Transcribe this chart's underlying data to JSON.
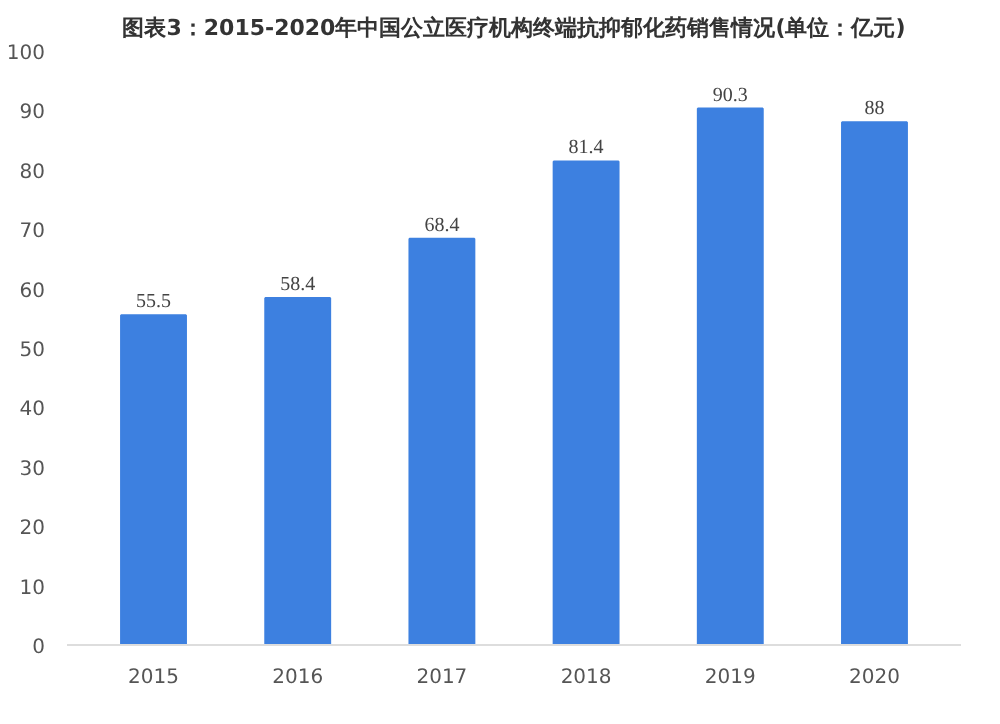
{
  "chart_data": {
    "type": "bar",
    "title": "图表3：2015-2020年中国公立医疗机构终端抗抑郁化药销售情况(单位：亿元)",
    "categories": [
      "2015",
      "2016",
      "2017",
      "2018",
      "2019",
      "2020"
    ],
    "values": [
      55.5,
      58.4,
      68.4,
      81.4,
      90.3,
      88
    ],
    "color": "#3d80e0",
    "ylim": [
      0,
      100
    ],
    "yticks": [
      0,
      10,
      20,
      30,
      40,
      50,
      60,
      70,
      80,
      90,
      100
    ],
    "grid": false,
    "data_labels": true
  }
}
